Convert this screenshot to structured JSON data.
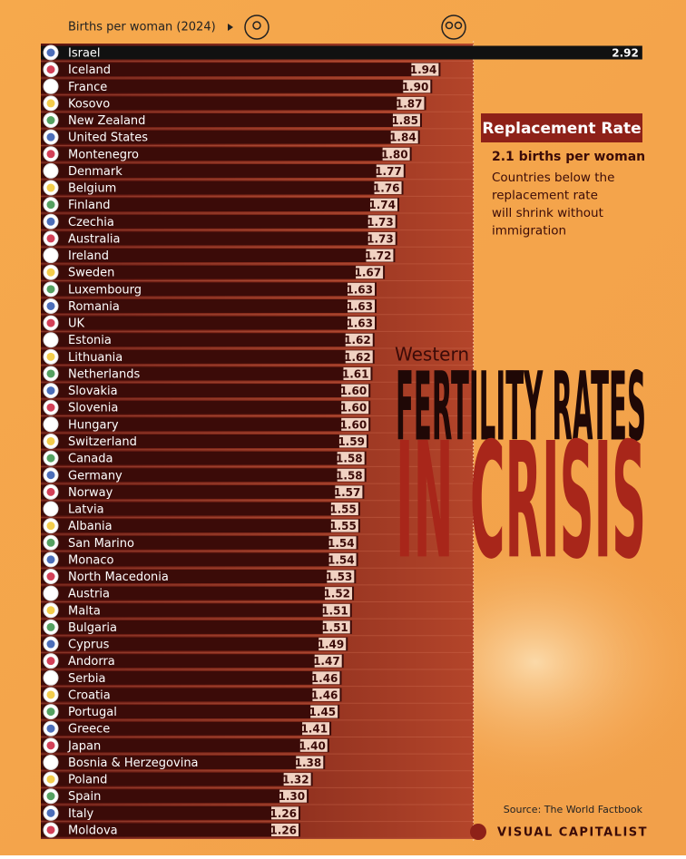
{
  "chart_data": {
    "type": "hbar",
    "axis_label": "Births per woman (2024)",
    "categories": [
      "Israel",
      "Iceland",
      "France",
      "Kosovo",
      "New Zealand",
      "United States",
      "Montenegro",
      "Denmark",
      "Belgium",
      "Finland",
      "Czechia",
      "Australia",
      "Ireland",
      "Sweden",
      "Luxembourg",
      "Romania",
      "UK",
      "Estonia",
      "Lithuania",
      "Netherlands",
      "Slovakia",
      "Slovenia",
      "Hungary",
      "Switzerland",
      "Canada",
      "Germany",
      "Norway",
      "Latvia",
      "Albania",
      "San Marino",
      "Monaco",
      "North Macedonia",
      "Austria",
      "Malta",
      "Bulgaria",
      "Cyprus",
      "Andorra",
      "Serbia",
      "Croatia",
      "Portugal",
      "Greece",
      "Japan",
      "Bosnia & Herzegovina",
      "Poland",
      "Spain",
      "Italy",
      "Moldova"
    ],
    "values": [
      2.92,
      1.94,
      1.9,
      1.87,
      1.85,
      1.84,
      1.8,
      1.77,
      1.76,
      1.74,
      1.73,
      1.73,
      1.72,
      1.67,
      1.63,
      1.63,
      1.63,
      1.62,
      1.62,
      1.61,
      1.6,
      1.6,
      1.6,
      1.59,
      1.58,
      1.58,
      1.57,
      1.55,
      1.55,
      1.54,
      1.54,
      1.53,
      1.52,
      1.51,
      1.51,
      1.49,
      1.47,
      1.46,
      1.46,
      1.45,
      1.41,
      1.4,
      1.38,
      1.32,
      1.3,
      1.26,
      1.26
    ],
    "value_labels": [
      "2.92",
      "1.94",
      "1.90",
      "1.87",
      "1.85",
      "1.84",
      "1.80",
      "1.77",
      "1.76",
      "1.74",
      "1.73",
      "1.73",
      "1.72",
      "1.67",
      "1.63",
      "1.63",
      "1.63",
      "1.62",
      "1.62",
      "1.61",
      "1.60",
      "1.60",
      "1.60",
      "1.59",
      "1.58",
      "1.58",
      "1.57",
      "1.55",
      "1.55",
      "1.54",
      "1.54",
      "1.53",
      "1.52",
      "1.51",
      "1.51",
      "1.49",
      "1.47",
      "1.46",
      "1.46",
      "1.45",
      "1.41",
      "1.40",
      "1.38",
      "1.32",
      "1.30",
      "1.26",
      "1.26"
    ],
    "color": "#3b0b08",
    "highlight_color": "#111111",
    "reference_line": {
      "value": 2.1,
      "label": "2.1 births per woman"
    },
    "annotation": {
      "title": "Replacement Rate",
      "lines": [
        "Countries below the",
        "replacement rate",
        "will shrink without",
        "immigration"
      ]
    },
    "title_small": "Western",
    "title_line1": "FERTILITY RATES",
    "title_line2": "IN CRISIS",
    "source": "Source: The World Factbook",
    "brand": "VISUAL CAPITALIST"
  }
}
